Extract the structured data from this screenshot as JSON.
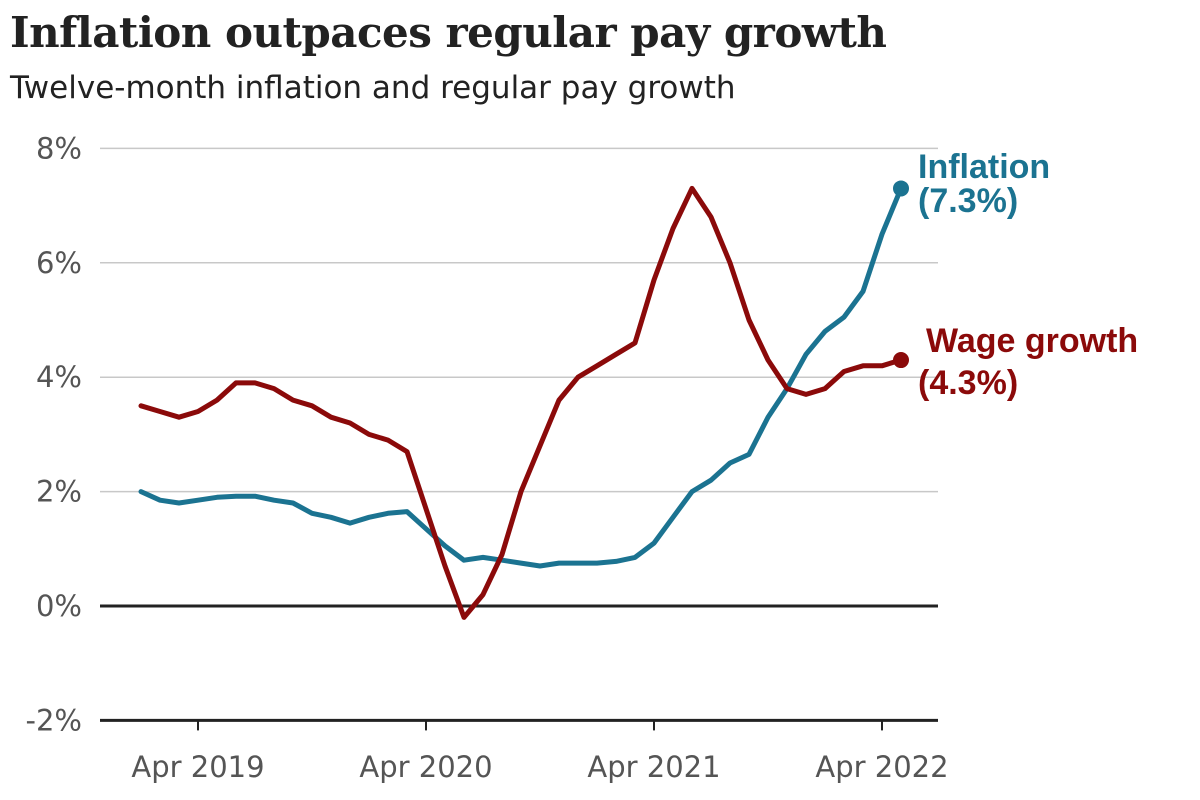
{
  "title": "Inflation outpaces regular pay growth",
  "subtitle": "Twelve-month inflation and regular pay growth",
  "chart_data": {
    "type": "line",
    "title": "Inflation outpaces regular pay growth",
    "subtitle": "Twelve-month inflation and regular pay growth",
    "x_start": "2019-01",
    "x_end": "2022-05",
    "x_frequency": "monthly",
    "x_ticks": [
      {
        "label": "Apr 2019",
        "date": "2019-04"
      },
      {
        "label": "Apr 2020",
        "date": "2020-04"
      },
      {
        "label": "Apr 2021",
        "date": "2021-04"
      },
      {
        "label": "Apr 2022",
        "date": "2022-04"
      }
    ],
    "y_ticks": [
      -2,
      0,
      2,
      4,
      6,
      8
    ],
    "y_tick_labels": [
      "-2%",
      "0%",
      "2%",
      "4%",
      "6%",
      "8%"
    ],
    "ylim": [
      -2,
      8
    ],
    "grid": "horizontal",
    "series": [
      {
        "name": "Inflation",
        "label": "Inflation",
        "end_label": "(7.3%)",
        "color": "#1b7391",
        "values": [
          2.0,
          1.85,
          1.8,
          1.85,
          1.9,
          1.92,
          1.92,
          1.85,
          1.8,
          1.62,
          1.55,
          1.45,
          1.55,
          1.62,
          1.65,
          1.35,
          1.05,
          0.8,
          0.85,
          0.8,
          0.75,
          0.7,
          0.75,
          0.75,
          0.75,
          0.78,
          0.85,
          1.1,
          1.55,
          2.0,
          2.2,
          2.5,
          2.65,
          3.3,
          3.8,
          4.4,
          4.8,
          5.05,
          5.5,
          6.5,
          7.3
        ]
      },
      {
        "name": "Wage growth",
        "label": "Wage growth",
        "end_label": "(4.3%)",
        "color": "#8b0a0a",
        "values": [
          3.5,
          3.4,
          3.3,
          3.4,
          3.6,
          3.9,
          3.9,
          3.8,
          3.6,
          3.5,
          3.3,
          3.2,
          3.0,
          2.9,
          2.7,
          1.7,
          0.7,
          -0.2,
          0.2,
          0.9,
          2.0,
          2.8,
          3.6,
          4.0,
          4.2,
          4.4,
          4.6,
          5.7,
          6.6,
          7.3,
          6.8,
          6.0,
          5.0,
          4.3,
          3.8,
          3.7,
          3.8,
          4.1,
          4.2,
          4.2,
          4.3
        ]
      }
    ]
  }
}
